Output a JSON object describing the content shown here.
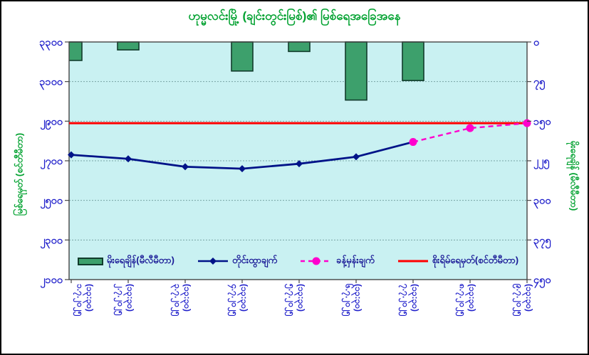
{
  "chart_data": {
    "type": "combo",
    "title": "ဟုမ္မလင်းမြို့ (ချင်းတွင်းမြစ်)၏ မြစ်ရေအခြေအနေ",
    "title_color": "#00a12f",
    "plot_bg": "#c9f1f2",
    "gridline_color": "#79a5a5",
    "tick_label_color": "#1d1dca",
    "legend_position": "bottom-inside",
    "categories": [
      {
        "date": "၁.၇.၂၀၂၅",
        "time": "(၁၃:၃၀)"
      },
      {
        "date": "၂.၇.၂၀၂၅",
        "time": "(၁၃:၃၀)"
      },
      {
        "date": "၃.၇.၂၀၂၅",
        "time": "(၁၃:၃၀)"
      },
      {
        "date": "၄.၇.၂၀၂၅",
        "time": "(၁၃:၃၀)"
      },
      {
        "date": "၅.၇.၂၀၂၅",
        "time": "(၁၃:၃၀)"
      },
      {
        "date": "၆.၇.၂၀၂၅",
        "time": "(၁၃:၃၀)"
      },
      {
        "date": "၇.၇.၂၀၂၅",
        "time": "(၁၃:၃၀)"
      },
      {
        "date": "၈.၇.၂၀၂၅",
        "time": "(၁၃:၃၀)"
      },
      {
        "date": "၉.၇.၂၀၂၅",
        "time": "(၁၃:၃၀)"
      }
    ],
    "left_axis": {
      "title": "မြစ်ရေမှတ် (စင်တီမီတာ)",
      "min": 2100,
      "max": 3300,
      "step": 200,
      "tick_labels": [
        "၃၃၀၀",
        "၃၁၀၀",
        "၂၉၀၀",
        "၂၇၀၀",
        "၂၅၀၀",
        "၂၃၀၀",
        "၂၁၀၀"
      ]
    },
    "right_axis": {
      "title": "မိုးရေချိန် (မီလီမီတာ)",
      "min": 0,
      "max": 450,
      "step": 75,
      "inverted": true,
      "tick_labels": [
        "၀",
        "၇၅",
        "၁၅၀",
        "၂၂၅",
        "၃၀၀",
        "၃၇၅",
        "၄၅၀"
      ]
    },
    "series": [
      {
        "name": "မိုးရေချိန်(မီလီမီတာ)",
        "type": "bar",
        "axis": "right",
        "color": "#3da06c",
        "border_color": "#113c2c",
        "values": [
          35,
          15,
          0,
          55,
          18,
          110,
          73,
          0,
          0
        ]
      },
      {
        "name": "တိုင်းထွာချက်",
        "type": "line",
        "axis": "left",
        "color": "#001388",
        "marker": "diamond",
        "values": [
          2730,
          2710,
          2670,
          2660,
          2685,
          2720,
          2795,
          null,
          null
        ]
      },
      {
        "name": "ခန့်မှန်းချက်",
        "type": "dashed-line",
        "axis": "left",
        "color": "#ff00cd",
        "marker": "circle",
        "values": [
          null,
          null,
          null,
          null,
          null,
          null,
          2795,
          2865,
          2890
        ]
      },
      {
        "name": "စိုးရိမ်ရေမှတ်(စင်တီမီတာ)",
        "type": "hline",
        "axis": "left",
        "color": "#ff0000",
        "value": 2890
      }
    ]
  }
}
